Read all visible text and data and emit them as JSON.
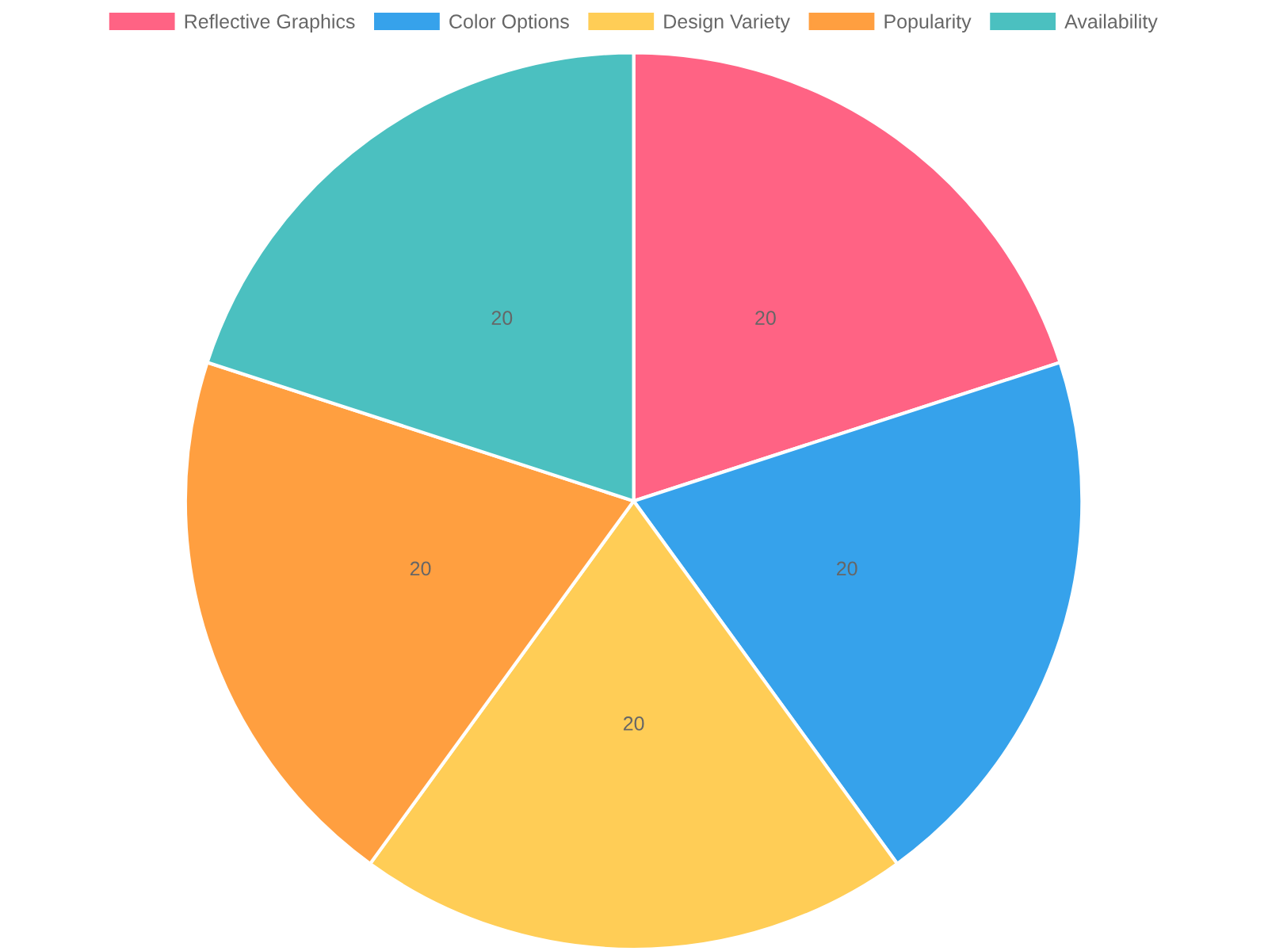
{
  "chart_data": {
    "type": "pie",
    "categories": [
      "Reflective Graphics",
      "Color Options",
      "Design Variety",
      "Popularity",
      "Availability"
    ],
    "values": [
      20,
      20,
      20,
      20,
      20
    ],
    "colors": [
      "#ff6384",
      "#36a2eb",
      "#ffcd56",
      "#ff9f40",
      "#4bc0c0"
    ],
    "data_labels": true,
    "legend": "top"
  }
}
